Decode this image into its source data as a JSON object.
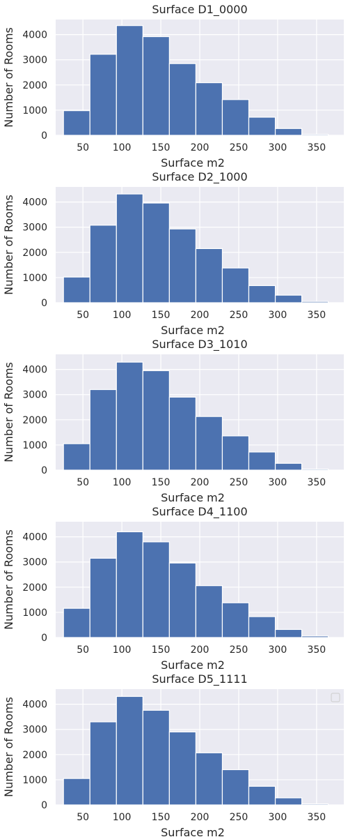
{
  "chart_data": [
    {
      "type": "bar",
      "title": "Surface D1_0000",
      "xlabel": "Surface m2",
      "ylabel": "Number of Rooms",
      "xlim": [
        15,
        385
      ],
      "ylim": [
        0,
        4600
      ],
      "xticks": [
        "50",
        "100",
        "150",
        "200",
        "250",
        "300",
        "350"
      ],
      "yticks": [
        "0",
        "1000",
        "2000",
        "3000",
        "4000"
      ],
      "bins": [
        {
          "x0": 25,
          "x1": 59,
          "value": 980
        },
        {
          "x0": 59,
          "x1": 93,
          "value": 3220
        },
        {
          "x0": 93,
          "x1": 127,
          "value": 4360
        },
        {
          "x0": 127,
          "x1": 161,
          "value": 3920
        },
        {
          "x0": 161,
          "x1": 195,
          "value": 2850
        },
        {
          "x0": 195,
          "x1": 229,
          "value": 2090
        },
        {
          "x0": 229,
          "x1": 263,
          "value": 1420
        },
        {
          "x0": 263,
          "x1": 297,
          "value": 720
        },
        {
          "x0": 297,
          "x1": 331,
          "value": 270
        },
        {
          "x0": 331,
          "x1": 365,
          "value": 40
        }
      ],
      "grid": true,
      "legend": false
    },
    {
      "type": "bar",
      "title": "Surface D2_1000",
      "xlabel": "Surface m2",
      "ylabel": "Number of Rooms",
      "xlim": [
        15,
        385
      ],
      "ylim": [
        0,
        4600
      ],
      "xticks": [
        "50",
        "100",
        "150",
        "200",
        "250",
        "300",
        "350"
      ],
      "yticks": [
        "0",
        "1000",
        "2000",
        "3000",
        "4000"
      ],
      "bins": [
        {
          "x0": 25,
          "x1": 59,
          "value": 1020
        },
        {
          "x0": 59,
          "x1": 93,
          "value": 3080
        },
        {
          "x0": 93,
          "x1": 127,
          "value": 4320
        },
        {
          "x0": 127,
          "x1": 161,
          "value": 3960
        },
        {
          "x0": 161,
          "x1": 195,
          "value": 2930
        },
        {
          "x0": 195,
          "x1": 229,
          "value": 2150
        },
        {
          "x0": 229,
          "x1": 263,
          "value": 1380
        },
        {
          "x0": 263,
          "x1": 297,
          "value": 680
        },
        {
          "x0": 297,
          "x1": 331,
          "value": 300
        },
        {
          "x0": 331,
          "x1": 365,
          "value": 50
        }
      ],
      "grid": true,
      "legend": false
    },
    {
      "type": "bar",
      "title": "Surface D3_1010",
      "xlabel": "Surface m2",
      "ylabel": "Number of Rooms",
      "xlim": [
        15,
        385
      ],
      "ylim": [
        0,
        4600
      ],
      "xticks": [
        "50",
        "100",
        "150",
        "200",
        "250",
        "300",
        "350"
      ],
      "yticks": [
        "0",
        "1000",
        "2000",
        "3000",
        "4000"
      ],
      "bins": [
        {
          "x0": 25,
          "x1": 59,
          "value": 1050
        },
        {
          "x0": 59,
          "x1": 93,
          "value": 3200
        },
        {
          "x0": 93,
          "x1": 127,
          "value": 4290
        },
        {
          "x0": 127,
          "x1": 161,
          "value": 3950
        },
        {
          "x0": 161,
          "x1": 195,
          "value": 2900
        },
        {
          "x0": 195,
          "x1": 229,
          "value": 2130
        },
        {
          "x0": 229,
          "x1": 263,
          "value": 1360
        },
        {
          "x0": 263,
          "x1": 297,
          "value": 720
        },
        {
          "x0": 297,
          "x1": 331,
          "value": 270
        },
        {
          "x0": 331,
          "x1": 365,
          "value": 40
        }
      ],
      "grid": true,
      "legend": false
    },
    {
      "type": "bar",
      "title": "Surface D4_1100",
      "xlabel": "Surface m2",
      "ylabel": "Number of Rooms",
      "xlim": [
        15,
        385
      ],
      "ylim": [
        0,
        4600
      ],
      "xticks": [
        "50",
        "100",
        "150",
        "200",
        "250",
        "300",
        "350"
      ],
      "yticks": [
        "0",
        "1000",
        "2000",
        "3000",
        "4000"
      ],
      "bins": [
        {
          "x0": 25,
          "x1": 59,
          "value": 1160
        },
        {
          "x0": 59,
          "x1": 93,
          "value": 3150
        },
        {
          "x0": 93,
          "x1": 127,
          "value": 4200
        },
        {
          "x0": 127,
          "x1": 161,
          "value": 3800
        },
        {
          "x0": 161,
          "x1": 195,
          "value": 2960
        },
        {
          "x0": 195,
          "x1": 229,
          "value": 2060
        },
        {
          "x0": 229,
          "x1": 263,
          "value": 1380
        },
        {
          "x0": 263,
          "x1": 297,
          "value": 830
        },
        {
          "x0": 297,
          "x1": 331,
          "value": 320
        },
        {
          "x0": 331,
          "x1": 365,
          "value": 60
        }
      ],
      "grid": true,
      "legend": false
    },
    {
      "type": "bar",
      "title": "Surface D5_1111",
      "xlabel": "Surface m2",
      "ylabel": "Number of Rooms",
      "xlim": [
        15,
        385
      ],
      "ylim": [
        0,
        4600
      ],
      "xticks": [
        "50",
        "100",
        "150",
        "200",
        "250",
        "300",
        "350"
      ],
      "yticks": [
        "0",
        "1000",
        "2000",
        "3000",
        "4000"
      ],
      "bins": [
        {
          "x0": 25,
          "x1": 59,
          "value": 1050
        },
        {
          "x0": 59,
          "x1": 93,
          "value": 3300
        },
        {
          "x0": 93,
          "x1": 127,
          "value": 4310
        },
        {
          "x0": 127,
          "x1": 161,
          "value": 3760
        },
        {
          "x0": 161,
          "x1": 195,
          "value": 2900
        },
        {
          "x0": 195,
          "x1": 229,
          "value": 2070
        },
        {
          "x0": 229,
          "x1": 263,
          "value": 1400
        },
        {
          "x0": 263,
          "x1": 297,
          "value": 740
        },
        {
          "x0": 297,
          "x1": 331,
          "value": 280
        },
        {
          "x0": 331,
          "x1": 365,
          "value": 40
        }
      ],
      "grid": true,
      "legend": true,
      "legend_position": "upper-right"
    }
  ],
  "colors": {
    "bar": "#4c72b0",
    "plot_background": "#eaeaf2",
    "grid": "#ffffff",
    "text": "#262626"
  }
}
